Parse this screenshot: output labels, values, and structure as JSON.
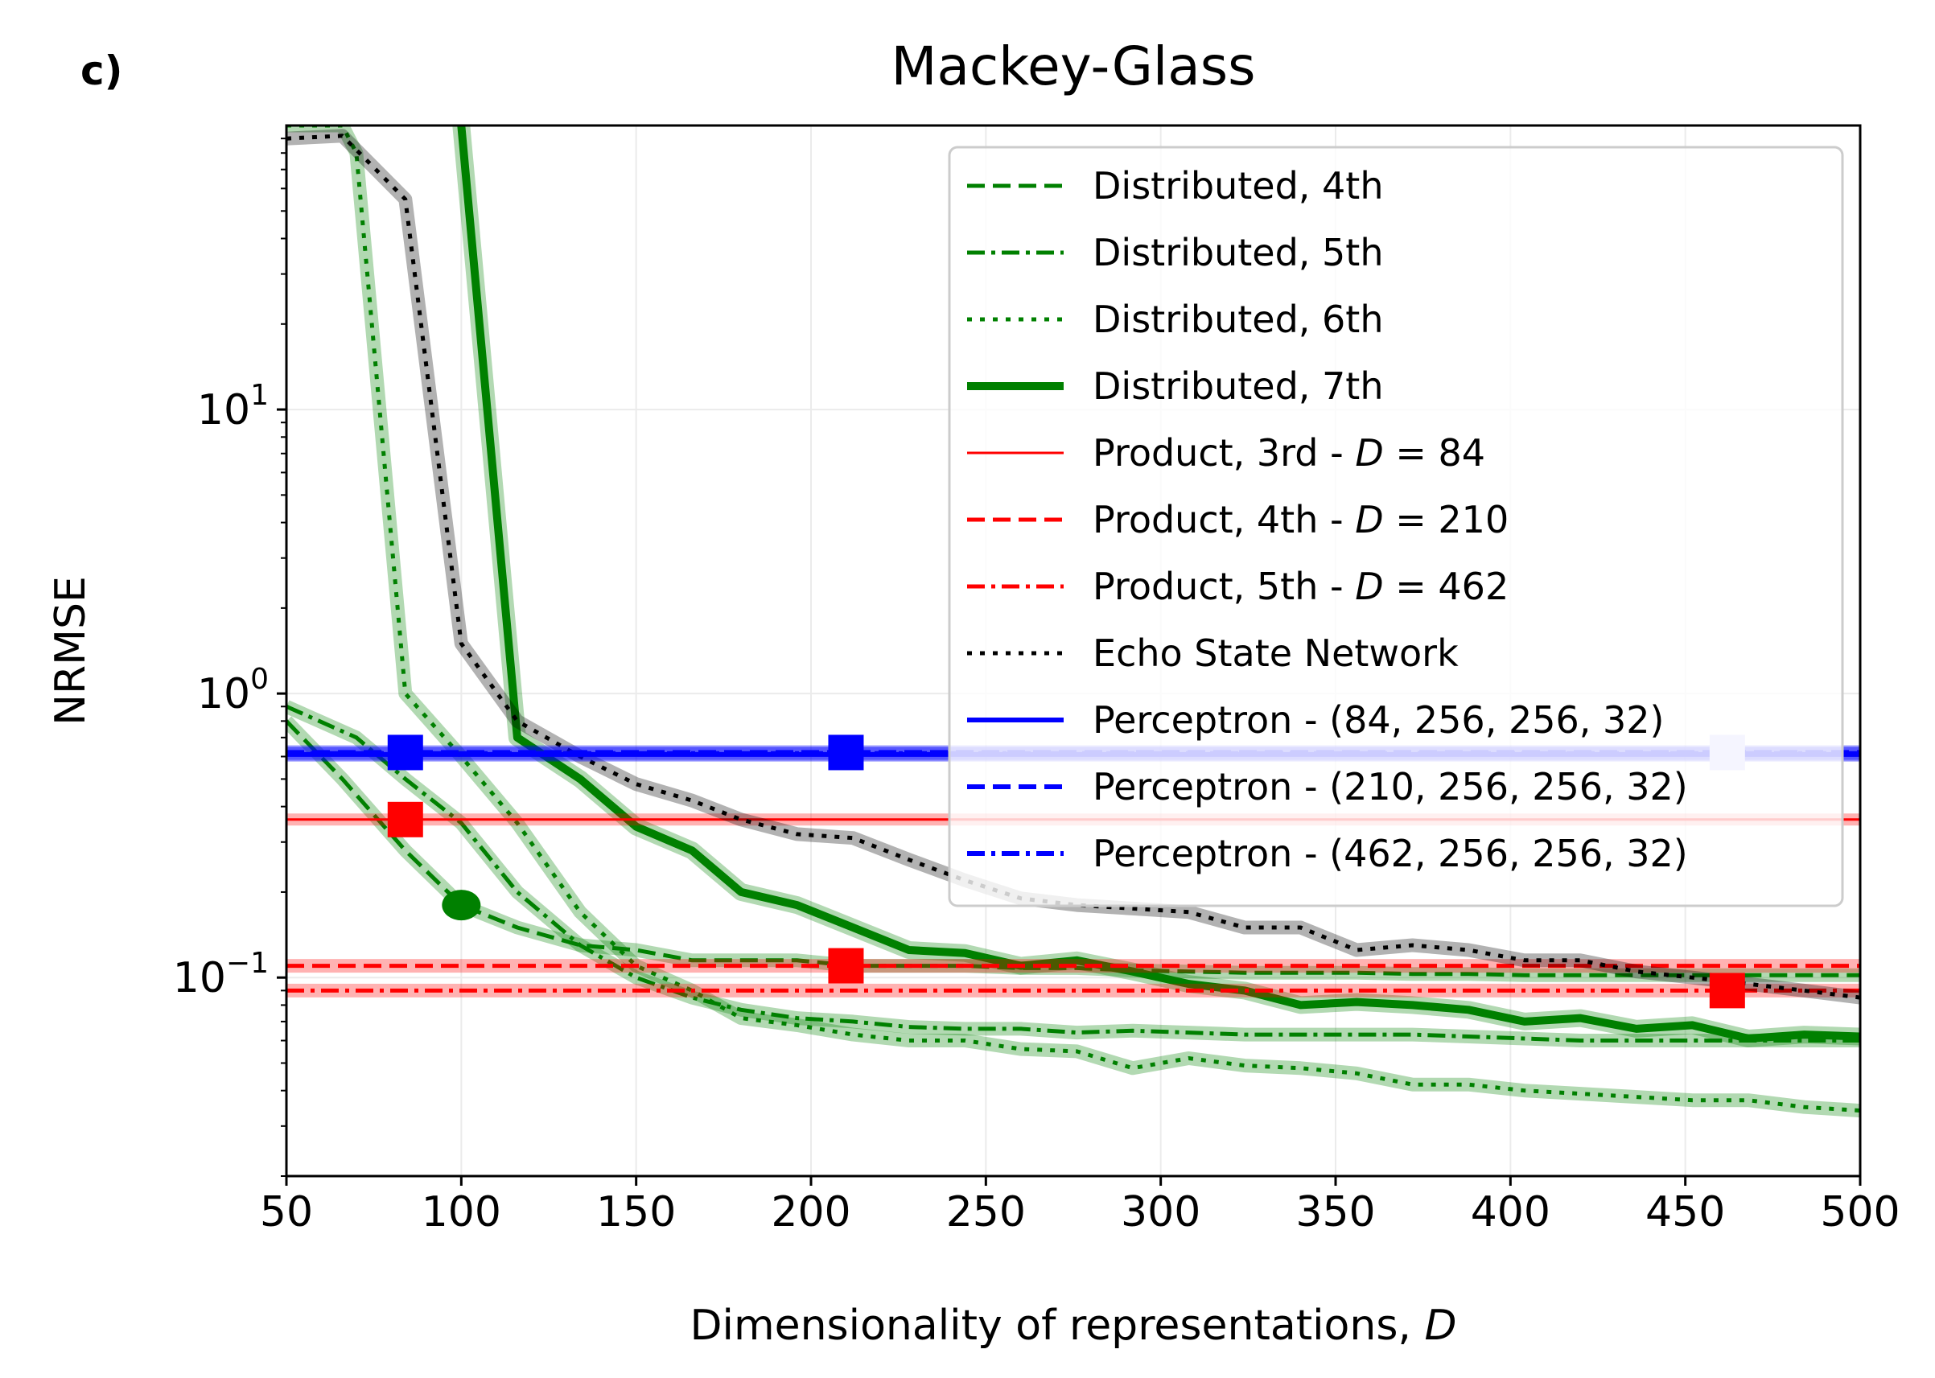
{
  "panel_label": "c)",
  "chart_data": {
    "type": "line",
    "title": "Mackey-Glass",
    "xlabel": "Dimensionality of representations, ",
    "xlabel_var": "D",
    "ylabel": "NRMSE",
    "xlim": [
      50,
      500
    ],
    "ylim": [
      0.02,
      100
    ],
    "yscale": "log",
    "grid": true,
    "legend_position": "top-right",
    "x_ticks": [
      {
        "v": 50,
        "label": "50"
      },
      {
        "v": 100,
        "label": "100"
      },
      {
        "v": 150,
        "label": "150"
      },
      {
        "v": 200,
        "label": "200"
      },
      {
        "v": 250,
        "label": "250"
      },
      {
        "v": 300,
        "label": "300"
      },
      {
        "v": 350,
        "label": "350"
      },
      {
        "v": 400,
        "label": "400"
      },
      {
        "v": 450,
        "label": "450"
      },
      {
        "v": 500,
        "label": "500"
      }
    ],
    "y_ticks": [
      {
        "v": 0.1,
        "base": "10",
        "exp": "−1"
      },
      {
        "v": 1,
        "base": "10",
        "exp": "0"
      },
      {
        "v": 10,
        "base": "10",
        "exp": "1"
      }
    ],
    "series": [
      {
        "name": "Distributed, 4th",
        "color": "#008000",
        "style": "dashed",
        "width": 5,
        "x": [
          50,
          66,
          84,
          100,
          116,
          134,
          150,
          166,
          180,
          196,
          212,
          228,
          244,
          260,
          276,
          292,
          308,
          324,
          340,
          356,
          372,
          388,
          404,
          420,
          436,
          452,
          468,
          484,
          500
        ],
        "y": [
          0.8,
          0.5,
          0.28,
          0.18,
          0.15,
          0.13,
          0.125,
          0.115,
          0.115,
          0.115,
          0.11,
          0.11,
          0.11,
          0.108,
          0.108,
          0.106,
          0.105,
          0.104,
          0.104,
          0.104,
          0.103,
          0.103,
          0.102,
          0.102,
          0.102,
          0.102,
          0.102,
          0.102,
          0.102
        ],
        "marker": {
          "x": 100,
          "y": 0.18,
          "shape": "circle"
        }
      },
      {
        "name": "Distributed, 5th",
        "color": "#008000",
        "style": "dashdot",
        "width": 5,
        "x": [
          50,
          70,
          84,
          100,
          116,
          134,
          150,
          166,
          180,
          196,
          212,
          228,
          244,
          260,
          276,
          292,
          308,
          324,
          340,
          356,
          372,
          388,
          404,
          420,
          436,
          452,
          468,
          484,
          500
        ],
        "y": [
          0.9,
          0.7,
          0.5,
          0.35,
          0.2,
          0.13,
          0.1,
          0.085,
          0.077,
          0.072,
          0.07,
          0.067,
          0.066,
          0.066,
          0.064,
          0.065,
          0.064,
          0.063,
          0.063,
          0.063,
          0.063,
          0.062,
          0.061,
          0.06,
          0.06,
          0.06,
          0.06,
          0.06,
          0.06
        ]
      },
      {
        "name": "Distributed, 6th",
        "color": "#008000",
        "style": "dotted",
        "width": 5,
        "x": [
          50,
          66,
          70,
          84,
          100,
          116,
          134,
          150,
          166,
          180,
          196,
          212,
          228,
          244,
          260,
          276,
          292,
          308,
          324,
          340,
          356,
          372,
          388,
          404,
          420,
          436,
          452,
          468,
          484,
          500
        ],
        "y": [
          100,
          100,
          80,
          1.0,
          0.6,
          0.35,
          0.17,
          0.11,
          0.09,
          0.072,
          0.068,
          0.063,
          0.06,
          0.06,
          0.056,
          0.055,
          0.048,
          0.052,
          0.049,
          0.048,
          0.046,
          0.042,
          0.042,
          0.04,
          0.039,
          0.038,
          0.037,
          0.037,
          0.035,
          0.034
        ]
      },
      {
        "name": "Distributed, 7th",
        "color": "#008000",
        "style": "solid",
        "width": 10,
        "x": [
          100,
          116,
          134,
          150,
          166,
          180,
          196,
          212,
          228,
          244,
          260,
          276,
          292,
          308,
          324,
          340,
          356,
          372,
          388,
          404,
          420,
          436,
          452,
          468,
          484,
          500
        ],
        "y": [
          100,
          0.7,
          0.5,
          0.34,
          0.28,
          0.2,
          0.18,
          0.15,
          0.125,
          0.122,
          0.11,
          0.115,
          0.105,
          0.095,
          0.09,
          0.08,
          0.082,
          0.08,
          0.077,
          0.07,
          0.072,
          0.066,
          0.068,
          0.061,
          0.063,
          0.062
        ]
      },
      {
        "name": "Product, 3rd - ",
        "var": "D",
        "eq": "84",
        "color": "#ff0000",
        "style": "solid",
        "width": 3,
        "x": [
          50,
          500
        ],
        "y": [
          0.36,
          0.36
        ],
        "marker": {
          "x": 84,
          "y": 0.36,
          "shape": "square"
        }
      },
      {
        "name": "Product, 4th - ",
        "var": "D",
        "eq": "210",
        "color": "#ff0000",
        "style": "dashed",
        "width": 5,
        "x": [
          50,
          500
        ],
        "y": [
          0.11,
          0.11
        ],
        "marker": {
          "x": 210,
          "y": 0.11,
          "shape": "square"
        }
      },
      {
        "name": "Product, 5th - ",
        "var": "D",
        "eq": "462",
        "color": "#ff0000",
        "style": "dashdot",
        "width": 5,
        "x": [
          50,
          500
        ],
        "y": [
          0.09,
          0.09
        ],
        "marker": {
          "x": 462,
          "y": 0.09,
          "shape": "square"
        }
      },
      {
        "name": "Echo State Network",
        "color": "#000000",
        "style": "dotted",
        "width": 5,
        "x": [
          50,
          66,
          84,
          100,
          116,
          134,
          150,
          166,
          180,
          196,
          212,
          228,
          244,
          260,
          276,
          292,
          308,
          324,
          340,
          356,
          372,
          388,
          404,
          420,
          436,
          452,
          468,
          484,
          500
        ],
        "y": [
          90,
          92,
          55,
          1.5,
          0.8,
          0.6,
          0.48,
          0.42,
          0.36,
          0.32,
          0.31,
          0.26,
          0.22,
          0.19,
          0.18,
          0.175,
          0.17,
          0.15,
          0.15,
          0.125,
          0.13,
          0.125,
          0.115,
          0.115,
          0.105,
          0.1,
          0.095,
          0.09,
          0.085
        ]
      },
      {
        "name": "Perceptron - (84, 256, 256, 32)",
        "color": "#0000ff",
        "style": "solid",
        "width": 6,
        "x": [
          50,
          500
        ],
        "y": [
          0.61,
          0.61
        ],
        "marker": {
          "x": 84,
          "y": 0.62,
          "shape": "square"
        }
      },
      {
        "name": "Perceptron - (210, 256, 256, 32)",
        "color": "#0000ff",
        "style": "dashed",
        "width": 6,
        "x": [
          50,
          500
        ],
        "y": [
          0.62,
          0.62
        ],
        "marker": {
          "x": 210,
          "y": 0.62,
          "shape": "square"
        }
      },
      {
        "name": "Perceptron - (462, 256, 256, 32)",
        "color": "#0000ff",
        "style": "dashdot",
        "width": 6,
        "x": [
          50,
          500
        ],
        "y": [
          0.615,
          0.615
        ],
        "marker": {
          "x": 462,
          "y": 0.62,
          "shape": "square",
          "faded": true
        }
      }
    ]
  }
}
